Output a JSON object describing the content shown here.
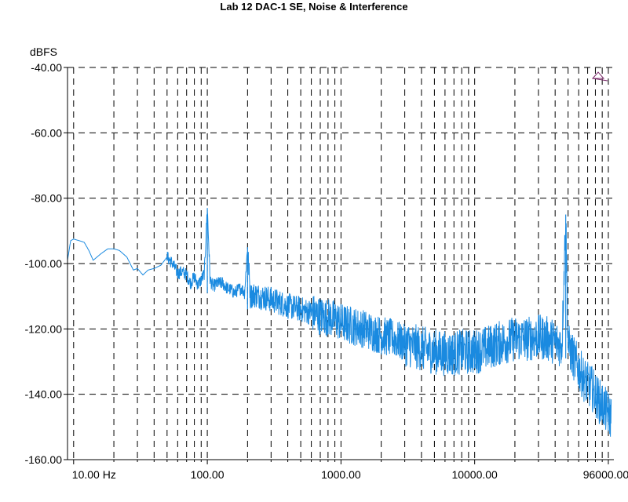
{
  "chart_data": {
    "type": "line",
    "title": "Lab 12 DAC-1 SE, Noise & Interference",
    "ylabel": "dBFS",
    "xlabel": "",
    "x_scale": "log",
    "xlim": [
      9,
      110000
    ],
    "ylim": [
      -160,
      -40
    ],
    "grid": true,
    "grid_style": "dashed",
    "line_color": "#1a8ae0",
    "y_ticks": [
      {
        "value": -40,
        "label": "-40.00"
      },
      {
        "value": -60,
        "label": "-60.00"
      },
      {
        "value": -80,
        "label": "-80.00"
      },
      {
        "value": -100,
        "label": "-100.00"
      },
      {
        "value": -120,
        "label": "-120.00"
      },
      {
        "value": -140,
        "label": "-140.00"
      },
      {
        "value": -160,
        "label": "-160.00"
      }
    ],
    "x_ticks": [
      {
        "value": 10,
        "label": "10.00 Hz"
      },
      {
        "value": 100,
        "label": "100.00"
      },
      {
        "value": 1000,
        "label": "1000.00"
      },
      {
        "value": 10000,
        "label": "10000.00"
      },
      {
        "value": 96000,
        "label": "96000.00"
      }
    ],
    "series": [
      {
        "x": [
          9,
          9.5,
          10,
          11,
          12,
          13,
          14,
          16,
          18,
          20,
          22,
          25,
          28,
          30,
          33,
          36,
          40,
          45,
          50,
          55,
          60,
          65,
          70,
          75,
          80,
          85,
          90,
          95,
          100,
          105,
          110,
          120,
          130,
          140,
          150,
          160,
          170,
          180,
          190,
          200,
          210,
          220,
          250,
          300,
          350,
          400,
          450,
          500,
          550,
          600,
          700,
          800,
          900,
          1000,
          1200,
          1500,
          2000,
          2500,
          3000,
          4000,
          5000,
          6000,
          7000,
          8000,
          10000,
          12000,
          15000,
          20000,
          25000,
          30000,
          35000,
          40000,
          45000,
          48000,
          50000,
          55000,
          60000,
          65000,
          70000,
          75000,
          80000,
          85000,
          90000,
          96000,
          100000,
          105000
        ],
        "y": [
          -99,
          -93,
          -92.5,
          -93,
          -93.5,
          -96,
          -99,
          -97,
          -95.5,
          -95.5,
          -96,
          -98,
          -102,
          -101.5,
          -103.5,
          -102,
          -101.5,
          -100.5,
          -98,
          -100,
          -103,
          -102.5,
          -103.5,
          -106,
          -104,
          -106.5,
          -105,
          -103,
          -83,
          -105,
          -107,
          -106,
          -106,
          -107.5,
          -108,
          -109,
          -108,
          -107.5,
          -109,
          -95,
          -110,
          -109.5,
          -110,
          -111,
          -112,
          -113,
          -113.5,
          -114,
          -114.5,
          -115,
          -116,
          -116.5,
          -117,
          -118,
          -119,
          -120,
          -122,
          -123,
          -124.5,
          -126,
          -127,
          -127.5,
          -127.5,
          -127,
          -127,
          -126,
          -124.5,
          -123,
          -123,
          -122.5,
          -123,
          -124,
          -125,
          -85,
          -125,
          -129,
          -132,
          -135,
          -137,
          -138,
          -140,
          -142,
          -143,
          -145,
          -146,
          -147
        ]
      }
    ]
  }
}
